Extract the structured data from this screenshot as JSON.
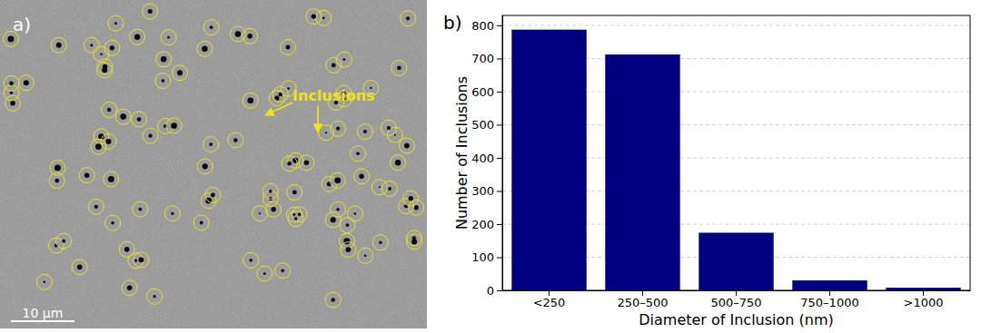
{
  "micrograph": {
    "panel_label": "a)",
    "annotation": "Inclusions",
    "scale_bar_label": "10 μm"
  },
  "chart_data": {
    "type": "bar",
    "title": "b)",
    "x_label": "Diameter of Inclusion (nm)",
    "y_label": "Number of Inclusions",
    "categories": [
      "<250",
      "250–500",
      "500–750",
      "750–1000",
      ">1000"
    ],
    "values": [
      787,
      712,
      174,
      30,
      8
    ],
    "color": "#000080",
    "ylim": [
      0,
      830
    ],
    "yticks": [
      0,
      100,
      200,
      300,
      400,
      500,
      600,
      700,
      800
    ],
    "grid": true
  }
}
